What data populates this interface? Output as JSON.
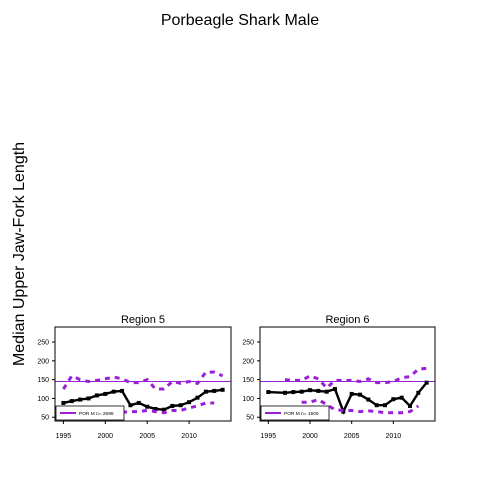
{
  "title": "Porbeagle Shark Male",
  "ylabel": "Median Upper Jaw-Fork Length",
  "colors": {
    "median": "#000000",
    "quantile": "#9b1fd6",
    "reference": "#9b1fd6",
    "frame": "#000000"
  },
  "chart_data": [
    {
      "type": "line",
      "title": "Region  5",
      "xlim": [
        1994,
        2015
      ],
      "ylim": [
        40,
        290
      ],
      "xticks": [
        1995,
        2000,
        2005,
        2010
      ],
      "yticks": [
        50,
        100,
        150,
        200,
        250
      ],
      "reference_line": 145,
      "legend": {
        "label": "POR M n= 2696",
        "position": "bottom-left"
      },
      "series": [
        {
          "role": "median",
          "x": [
            1995,
            1996,
            1997,
            1998,
            1999,
            2000,
            2001,
            2002,
            2003,
            2004,
            2005,
            2006,
            2007,
            2008,
            2009,
            2010,
            2011,
            2012,
            2013,
            2014
          ],
          "y": [
            88,
            93,
            97,
            100,
            108,
            112,
            118,
            120,
            82,
            88,
            78,
            72,
            70,
            80,
            82,
            90,
            102,
            118,
            120,
            123
          ]
        },
        {
          "role": "upper-quantile",
          "x": [
            1995,
            1996,
            1997,
            1998,
            1999,
            2000,
            2001,
            2002,
            2003,
            2004,
            2005,
            2006,
            2007,
            2008,
            2009,
            2010,
            2011,
            2012,
            2013,
            2014
          ],
          "y": [
            125,
            160,
            150,
            145,
            148,
            152,
            157,
            152,
            142,
            142,
            150,
            125,
            125,
            145,
            140,
            145,
            140,
            170,
            170,
            160
          ]
        },
        {
          "role": "lower-quantile",
          "x": [
            2002,
            2003,
            2004,
            2005,
            2006,
            2007,
            2008,
            2009,
            2010,
            2011,
            2012,
            2013
          ],
          "y": [
            63,
            65,
            65,
            68,
            65,
            62,
            68,
            68,
            75,
            80,
            88,
            88
          ]
        }
      ]
    },
    {
      "type": "line",
      "title": "Region  6",
      "xlim": [
        1994,
        2015
      ],
      "ylim": [
        40,
        290
      ],
      "xticks": [
        1995,
        2000,
        2005,
        2010
      ],
      "yticks": [
        50,
        100,
        150,
        200,
        250
      ],
      "reference_line": 145,
      "legend": {
        "label": "POR M n= 1500",
        "position": "bottom-left"
      },
      "series": [
        {
          "role": "median",
          "x": [
            1995,
            1997,
            1998,
            1999,
            2000,
            2001,
            2002,
            2003,
            2004,
            2005,
            2006,
            2007,
            2008,
            2009,
            2010,
            2011,
            2012,
            2013,
            2014
          ],
          "y": [
            117,
            115,
            117,
            118,
            122,
            120,
            118,
            125,
            65,
            112,
            110,
            97,
            82,
            82,
            98,
            102,
            80,
            115,
            142
          ]
        },
        {
          "role": "upper-quantile",
          "x": [
            1997,
            1998,
            1999,
            2000,
            2001,
            2002,
            2003,
            2004,
            2005,
            2006,
            2007,
            2008,
            2009,
            2010,
            2011,
            2012,
            2013,
            2014
          ],
          "y": [
            150,
            148,
            148,
            160,
            152,
            128,
            148,
            148,
            148,
            145,
            152,
            142,
            142,
            145,
            155,
            158,
            178,
            180
          ]
        },
        {
          "role": "lower-quantile",
          "x": [
            1999,
            2000,
            2001,
            2003,
            2004,
            2005,
            2006,
            2007,
            2008,
            2009,
            2010,
            2011,
            2012,
            2013
          ],
          "y": [
            90,
            90,
            97,
            70,
            68,
            68,
            65,
            67,
            65,
            62,
            62,
            62,
            65,
            80
          ]
        }
      ]
    }
  ]
}
